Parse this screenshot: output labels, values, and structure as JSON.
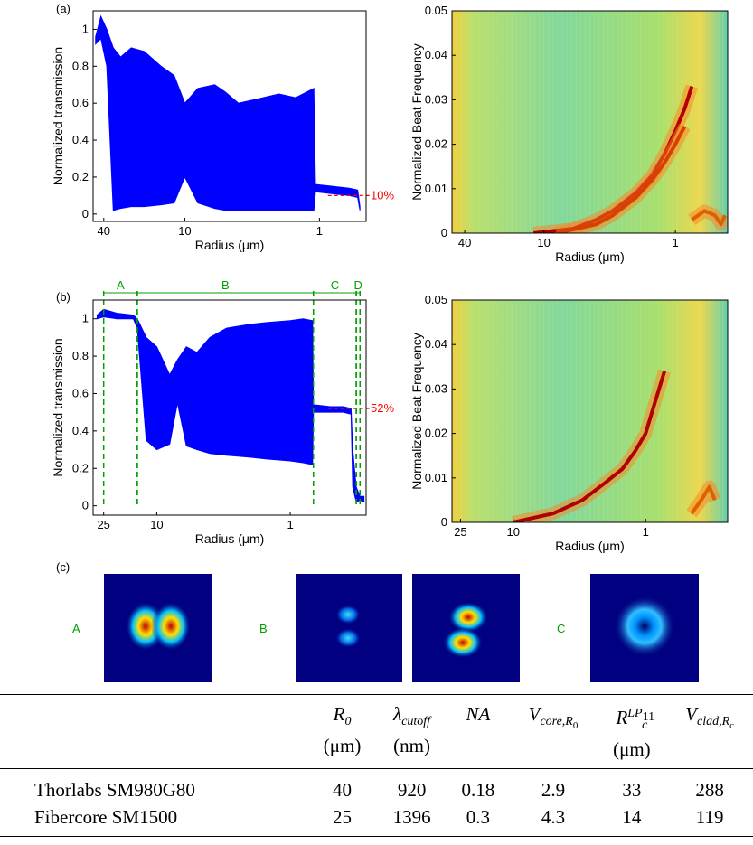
{
  "chart_data": [
    {
      "type": "envelope",
      "xlabel": "Radius (μm)",
      "ylabel": "Normalized transmission",
      "log_x": true,
      "color": "#0000ff",
      "xlim": [
        48,
        0.45
      ],
      "xticks": [
        40,
        10,
        1
      ],
      "ylim": [
        -0.04,
        1.1
      ],
      "yticks": [
        0,
        0.2,
        0.4,
        0.6,
        0.8,
        1
      ],
      "x": [
        46,
        42,
        38,
        34,
        30,
        25,
        20,
        15,
        12,
        10,
        8,
        6,
        5,
        4,
        3,
        2,
        1.5,
        1.1,
        1.07,
        0.8,
        0.6,
        0.52,
        0.5
      ],
      "upper": [
        0.96,
        1.07,
        1.0,
        0.9,
        0.85,
        0.9,
        0.88,
        0.8,
        0.75,
        0.6,
        0.68,
        0.7,
        0.66,
        0.6,
        0.62,
        0.65,
        0.63,
        0.68,
        0.16,
        0.15,
        0.14,
        0.13,
        0.04
      ],
      "lower": [
        0.92,
        0.95,
        0.8,
        0.02,
        0.03,
        0.04,
        0.04,
        0.05,
        0.06,
        0.2,
        0.06,
        0.03,
        0.02,
        0.02,
        0.02,
        0.02,
        0.02,
        0.02,
        0.12,
        0.11,
        0.1,
        0.09,
        0.02
      ],
      "reference_line": {
        "value": 0.1,
        "label": "10%",
        "color": "#ff0000"
      }
    },
    {
      "type": "heatmap",
      "xlabel": "Radius (μm)",
      "ylabel": "Normalized Beat Frequency",
      "log_x": true,
      "xlim": [
        50,
        0.4
      ],
      "xticks": [
        40,
        10,
        1
      ],
      "ylim": [
        0,
        0.05
      ],
      "yticks": [
        0,
        0.01,
        0.02,
        0.03,
        0.04,
        0.05
      ],
      "ridges": [
        {
          "color": "#b00000",
          "x": [
            12,
            6,
            4,
            3,
            2,
            1.5,
            1.2,
            1,
            0.85,
            0.75
          ],
          "y": [
            0,
            0.001,
            0.003,
            0.005,
            0.009,
            0.013,
            0.018,
            0.023,
            0.028,
            0.033
          ]
        },
        {
          "color": "#d84000",
          "x": [
            8,
            4,
            3,
            2,
            1.5,
            1.2,
            1,
            0.85
          ],
          "y": [
            0,
            0.002,
            0.004,
            0.008,
            0.012,
            0.016,
            0.02,
            0.024
          ]
        },
        {
          "color": "#e06000",
          "x": [
            0.75,
            0.6,
            0.5,
            0.45,
            0.42
          ],
          "y": [
            0.003,
            0.005,
            0.004,
            0.002,
            0.004
          ]
        }
      ]
    },
    {
      "type": "envelope",
      "xlabel": "Radius (μm)",
      "ylabel": "Normalized transmission",
      "log_x": true,
      "color": "#0000ff",
      "xlim": [
        30,
        0.27
      ],
      "xticks": [
        25,
        10,
        1
      ],
      "ylim": [
        -0.05,
        1.1
      ],
      "yticks": [
        0,
        0.2,
        0.4,
        0.6,
        0.8,
        1
      ],
      "x": [
        28,
        25,
        20,
        15,
        14,
        12,
        10,
        8,
        7,
        6,
        5,
        4,
        3,
        2,
        1.5,
        1,
        0.8,
        0.68,
        0.67,
        0.5,
        0.4,
        0.35,
        0.34,
        0.32,
        0.3,
        0.28
      ],
      "upper": [
        1.02,
        1.05,
        1.03,
        1.02,
        1.0,
        0.9,
        0.85,
        0.7,
        0.78,
        0.85,
        0.82,
        0.9,
        0.95,
        0.97,
        0.98,
        0.99,
        1.0,
        0.99,
        0.54,
        0.53,
        0.53,
        0.52,
        0.3,
        0.1,
        0.05,
        0.05
      ],
      "lower": [
        1.0,
        1.01,
        1.0,
        1.0,
        0.95,
        0.35,
        0.3,
        0.33,
        0.55,
        0.32,
        0.3,
        0.28,
        0.27,
        0.26,
        0.25,
        0.24,
        0.23,
        0.22,
        0.5,
        0.5,
        0.5,
        0.49,
        0.1,
        0.02,
        0.03,
        0.02
      ],
      "reference_line": {
        "value": 0.52,
        "label": "52%",
        "color": "#ff0000"
      },
      "region_color": "#00a000",
      "regions": [
        {
          "label": "A",
          "from": 25,
          "to": 14
        },
        {
          "label": "B",
          "from": 14,
          "to": 0.67
        },
        {
          "label": "C",
          "from": 0.67,
          "to": 0.32
        },
        {
          "label": "D",
          "from": 0.32,
          "to": 0.3
        }
      ]
    },
    {
      "type": "heatmap",
      "xlabel": "Radius (μm)",
      "ylabel": "Normalized Beat Frequency",
      "log_x": true,
      "xlim": [
        29,
        0.24
      ],
      "xticks": [
        25,
        10,
        1
      ],
      "ylim": [
        0,
        0.05
      ],
      "yticks": [
        0,
        0.01,
        0.02,
        0.03,
        0.04,
        0.05
      ],
      "ridges": [
        {
          "color": "#b00000",
          "x": [
            10,
            5,
            3,
            2,
            1.5,
            1.2,
            1,
            0.85,
            0.72
          ],
          "y": [
            0,
            0.002,
            0.005,
            0.009,
            0.012,
            0.016,
            0.02,
            0.027,
            0.034
          ]
        },
        {
          "color": "#e06000",
          "x": [
            0.45,
            0.38,
            0.33,
            0.3
          ],
          "y": [
            0.002,
            0.005,
            0.008,
            0.005
          ]
        }
      ]
    }
  ],
  "panel_labels": [
    "(a)",
    "(b)",
    "(c)"
  ],
  "mode_images": {
    "labels": [
      "A",
      "B",
      "C"
    ]
  },
  "table": {
    "columns": [
      {
        "symbol": "R",
        "sub": "0",
        "unit": "(μm)"
      },
      {
        "symbol": "λ",
        "sub": "cutoff",
        "unit": "(nm)"
      },
      {
        "symbol": "NA"
      },
      {
        "symbol": "V",
        "sub": "core,R",
        "subsub": "0"
      },
      {
        "symbol": "R",
        "sub": "c",
        "sup": "LP",
        "supsub": "11",
        "unit": "(μm)"
      },
      {
        "symbol": "V",
        "sub": "clad,R",
        "subsub": "c"
      }
    ],
    "rows": [
      [
        "Thorlabs SM980G80",
        40,
        920,
        0.18,
        2.9,
        33,
        288
      ],
      [
        "Fibercore SM1500",
        25,
        1396,
        0.3,
        4.3,
        14,
        119
      ]
    ]
  }
}
